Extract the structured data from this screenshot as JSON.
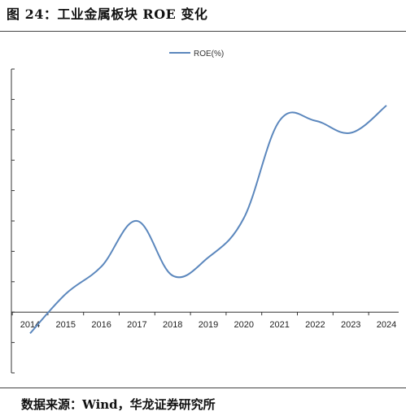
{
  "figure": {
    "title": "图 24：工业金属板块 ROE 变化",
    "source": "数据来源：Wind，华龙证券研究所"
  },
  "chart_data": {
    "type": "line",
    "title": "",
    "xlabel": "",
    "ylabel": "",
    "legend": {
      "position": "top-center",
      "entries": [
        "ROE(%)"
      ]
    },
    "grid": false,
    "categories": [
      "2014",
      "2015",
      "2016",
      "2017",
      "2018",
      "2019",
      "2020",
      "2021",
      "2022",
      "2023",
      "2024"
    ],
    "ylim": [
      -2,
      8
    ],
    "series": [
      {
        "name": "ROE(%)",
        "color": "#5b87bd",
        "values": [
          -0.7,
          0.6,
          1.5,
          3.0,
          1.2,
          1.8,
          3.1,
          6.3,
          6.3,
          5.9,
          6.8
        ]
      }
    ]
  }
}
